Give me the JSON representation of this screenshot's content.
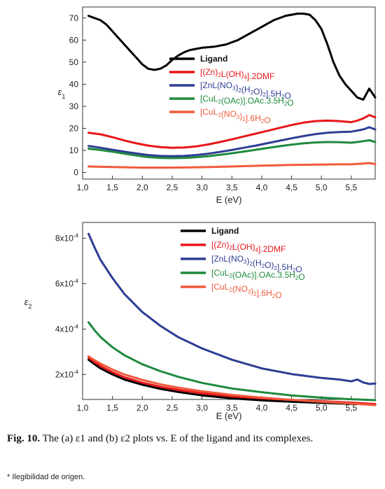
{
  "chart_data": [
    {
      "type": "line",
      "panel": "a",
      "title": "",
      "xlabel": "E (eV)",
      "ylabel": "ε1",
      "xlim": [
        1.0,
        5.9
      ],
      "ylim": [
        -3,
        75
      ],
      "xticks": [
        "1,0",
        "1,5",
        "2,0",
        "2,5",
        "3,0",
        "3,5",
        "4,0",
        "4,5",
        "5,0",
        "5,5"
      ],
      "yticks": [
        "0",
        "10",
        "20",
        "30",
        "40",
        "50",
        "60",
        "70"
      ],
      "legend_position": "center-right",
      "grid": false,
      "series": [
        {
          "name": "Ligand",
          "color": "#000000",
          "x": [
            1.1,
            1.2,
            1.3,
            1.4,
            1.5,
            1.6,
            1.7,
            1.8,
            1.9,
            2.0,
            2.1,
            2.2,
            2.3,
            2.4,
            2.5,
            2.6,
            2.7,
            2.8,
            2.9,
            3.0,
            3.2,
            3.4,
            3.6,
            3.8,
            4.0,
            4.2,
            4.4,
            4.6,
            4.7,
            4.8,
            4.9,
            5.0,
            5.1,
            5.2,
            5.3,
            5.4,
            5.5,
            5.6,
            5.7,
            5.8,
            5.9
          ],
          "y": [
            71,
            70,
            69,
            67,
            64,
            61,
            58,
            55,
            52,
            49,
            47,
            46.5,
            47,
            48.5,
            51,
            53,
            54.5,
            55.5,
            56,
            56.5,
            57,
            58,
            60,
            63,
            66,
            69,
            71,
            72,
            72,
            71.5,
            69,
            65,
            58,
            50,
            44,
            40,
            37,
            34,
            33,
            38,
            34
          ]
        },
        {
          "name": "[(Zn)2L(OH)4].2DMF",
          "color": "#e8151a",
          "x": [
            1.1,
            1.3,
            1.5,
            1.7,
            1.9,
            2.1,
            2.3,
            2.5,
            2.7,
            2.9,
            3.1,
            3.3,
            3.5,
            3.7,
            3.9,
            4.1,
            4.3,
            4.5,
            4.7,
            4.9,
            5.1,
            5.3,
            5.5,
            5.6,
            5.7,
            5.8,
            5.9
          ],
          "y": [
            18,
            17.3,
            16,
            14.5,
            13.2,
            12.2,
            11.5,
            11.2,
            11.3,
            11.8,
            12.7,
            13.8,
            15,
            16.3,
            17.6,
            18.9,
            20.2,
            21.5,
            22.6,
            23.3,
            23.5,
            23.3,
            22.8,
            23.5,
            24.5,
            26,
            25
          ]
        },
        {
          "name": "[ZnL(NO3)2(H2O)2].5H2O",
          "color": "#2e3c94",
          "x": [
            1.1,
            1.3,
            1.5,
            1.7,
            1.9,
            2.1,
            2.3,
            2.5,
            2.7,
            2.9,
            3.1,
            3.3,
            3.5,
            3.7,
            3.9,
            4.1,
            4.3,
            4.5,
            4.7,
            4.9,
            5.1,
            5.3,
            5.5,
            5.6,
            5.7,
            5.8,
            5.9
          ],
          "y": [
            12,
            11.2,
            10.3,
            9.4,
            8.6,
            7.9,
            7.5,
            7.4,
            7.5,
            7.9,
            8.5,
            9.3,
            10.2,
            11.2,
            12.2,
            13.3,
            14.4,
            15.5,
            16.5,
            17.4,
            18,
            18.3,
            18.5,
            19,
            19.5,
            20.5,
            19.5
          ]
        },
        {
          "name": "[CuL2(OAc)].OAc.3.5H2O",
          "color": "#1e8a3c",
          "x": [
            1.1,
            1.3,
            1.5,
            1.7,
            1.9,
            2.1,
            2.3,
            2.5,
            2.7,
            2.9,
            3.1,
            3.3,
            3.5,
            3.7,
            3.9,
            4.1,
            4.3,
            4.5,
            4.7,
            4.9,
            5.1,
            5.3,
            5.5,
            5.6,
            5.7,
            5.8,
            5.9
          ],
          "y": [
            10.8,
            10.2,
            9.4,
            8.5,
            7.7,
            7,
            6.6,
            6.5,
            6.6,
            6.9,
            7.4,
            8,
            8.7,
            9.5,
            10.3,
            11.1,
            11.9,
            12.6,
            13.2,
            13.6,
            13.8,
            13.7,
            13.5,
            13.8,
            14.2,
            14.6,
            13.8
          ]
        },
        {
          "name": "[CuL2(NO3)2].6H2O",
          "color": "#f05a3c",
          "x": [
            1.1,
            1.5,
            2.0,
            2.5,
            3.0,
            3.5,
            4.0,
            4.5,
            5.0,
            5.3,
            5.5,
            5.6,
            5.7,
            5.8,
            5.9
          ],
          "y": [
            2.7,
            2.5,
            2.2,
            2.2,
            2.4,
            2.7,
            3.1,
            3.4,
            3.6,
            3.7,
            3.7,
            3.9,
            4,
            4.3,
            3.8
          ]
        }
      ]
    },
    {
      "type": "line",
      "panel": "b",
      "title": "",
      "xlabel": "E (eV)",
      "ylabel": "ε2",
      "xlim": [
        1.0,
        5.9
      ],
      "ylim": [
        9e-05,
        0.00087
      ],
      "xticks": [
        "1,0",
        "1,5",
        "2,0",
        "2,5",
        "3,0",
        "3,5",
        "4,0",
        "4,5",
        "5,0",
        "5,5"
      ],
      "yticks": [
        "2x10-4",
        "4x10-4",
        "6x10-4",
        "8x10-4"
      ],
      "legend_position": "top-right",
      "grid": false,
      "series": [
        {
          "name": "Ligand",
          "color": "#000000",
          "x": [
            1.1,
            1.2,
            1.3,
            1.5,
            1.7,
            2.0,
            2.3,
            2.6,
            3.0,
            3.5,
            4.0,
            4.5,
            5.0,
            5.5,
            5.9
          ],
          "y": [
            0.000265,
            0.000245,
            0.000227,
            0.0002,
            0.000178,
            0.000155,
            0.000137,
            0.000123,
            0.000108,
            9.5e-05,
            8.6e-05,
            8e-05,
            7.5e-05,
            7.1e-05,
            6.8e-05
          ]
        },
        {
          "name": "[(Zn)2L(OH)4].2DMF",
          "color": "#e8151a",
          "x": [
            1.1,
            1.2,
            1.3,
            1.5,
            1.7,
            2.0,
            2.3,
            2.6,
            3.0,
            3.5,
            4.0,
            4.5,
            5.0,
            5.5,
            5.9
          ],
          "y": [
            0.000275,
            0.000255,
            0.000237,
            0.00021,
            0.000188,
            0.000164,
            0.000146,
            0.000132,
            0.000117,
            0.000104,
            9.5e-05,
            8.8e-05,
            8.2e-05,
            7.6e-05,
            7e-05
          ]
        },
        {
          "name": "[ZnL(NO3)2(H2O)2].5H2O",
          "color": "#2e3c94",
          "x": [
            1.1,
            1.2,
            1.3,
            1.5,
            1.7,
            2.0,
            2.3,
            2.6,
            3.0,
            3.5,
            4.0,
            4.5,
            5.0,
            5.3,
            5.5,
            5.6,
            5.7,
            5.8,
            5.9
          ],
          "y": [
            0.00082,
            0.00076,
            0.000705,
            0.000625,
            0.000555,
            0.000475,
            0.000415,
            0.000365,
            0.000315,
            0.000265,
            0.000227,
            0.000202,
            0.000185,
            0.000178,
            0.00017,
            0.000178,
            0.000165,
            0.000158,
            0.00016
          ]
        },
        {
          "name": "[CuL2(OAc)].OAc.3.5H2O",
          "color": "#1e8a3c",
          "x": [
            1.1,
            1.2,
            1.3,
            1.5,
            1.7,
            2.0,
            2.3,
            2.6,
            3.0,
            3.5,
            4.0,
            4.5,
            5.0,
            5.5,
            5.9
          ],
          "y": [
            0.00043,
            0.000395,
            0.000365,
            0.00032,
            0.000285,
            0.000245,
            0.000215,
            0.00019,
            0.000163,
            0.000138,
            0.000122,
            0.000108,
            9.8e-05,
            9.1e-05,
            8.7e-05
          ]
        },
        {
          "name": "[CuL2(NO3)2].6H2O",
          "color": "#f05a3c",
          "x": [
            1.1,
            1.2,
            1.3,
            1.5,
            1.7,
            2.0,
            2.3,
            2.6,
            3.0,
            3.5,
            4.0,
            4.5,
            5.0,
            5.5,
            5.9
          ],
          "y": [
            0.00028,
            0.000263,
            0.000248,
            0.000222,
            0.0002,
            0.000176,
            0.000157,
            0.000142,
            0.000126,
            0.00011,
            9.8e-05,
            8.8e-05,
            8e-05,
            7.2e-05,
            6.5e-05
          ]
        }
      ]
    }
  ],
  "caption": {
    "label": "Fig. 10.",
    "text": " The (a) ε1 and (b) ε2 plots vs. E of the ligand and its complexes."
  },
  "note": "* Ilegibilidad de origen."
}
